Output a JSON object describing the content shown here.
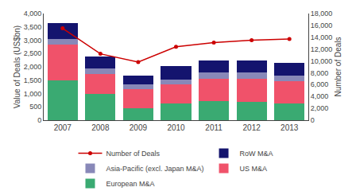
{
  "chart_data": {
    "type": "bar",
    "stacked": true,
    "categories": [
      "2007",
      "2008",
      "2009",
      "2010",
      "2011",
      "2012",
      "2013"
    ],
    "series": [
      {
        "name": "European M&A",
        "color": "#3aaa72",
        "values": [
          1500,
          1000,
          450,
          620,
          730,
          700,
          620
        ]
      },
      {
        "name": "US M&A",
        "color": "#f0526a",
        "values": [
          1340,
          740,
          700,
          720,
          820,
          860,
          855
        ]
      },
      {
        "name": "Asia-Pacific (excl. Japan M&A)",
        "color": "#8888b8",
        "values": [
          190,
          190,
          200,
          190,
          240,
          240,
          195
        ]
      },
      {
        "name": "RoW M&A",
        "color": "#14146e",
        "values": [
          600,
          450,
          330,
          490,
          440,
          440,
          490
        ]
      },
      {
        "name": "Number of Deals",
        "type": "line",
        "axis": "y2",
        "color": "#cc0000",
        "marker": "circle",
        "values": [
          15500,
          11200,
          9800,
          12400,
          13100,
          13500,
          13700
        ]
      }
    ],
    "ylabel": "Value of Deals (US$bn)",
    "y2label": "Number of Deals",
    "ylim": [
      0,
      4000
    ],
    "yticks": [
      0,
      500,
      {
        "value": 1000,
        "label": "1,000"
      },
      {
        "value": 1500,
        "label": "1,500"
      },
      {
        "value": 2000,
        "label": "2,000"
      },
      {
        "value": 2500,
        "label": "2,500"
      },
      {
        "value": 3000,
        "label": "3,000"
      },
      {
        "value": 3500,
        "label": "3,500"
      },
      {
        "value": 4000,
        "label": "4,000"
      }
    ],
    "y2lim": [
      0,
      18000
    ],
    "y2ticks": [
      0,
      {
        "value": 2000,
        "label": "2,000"
      },
      {
        "value": 4000,
        "label": "4,000"
      },
      {
        "value": 6000,
        "label": "6,000"
      },
      {
        "value": 8000,
        "label": "8,000"
      },
      {
        "value": 10000,
        "label": "10,000"
      },
      {
        "value": 12000,
        "label": "12,000"
      },
      {
        "value": 14000,
        "label": "14,000"
      },
      {
        "value": 16000,
        "label": "16,000"
      },
      {
        "value": 18000,
        "label": "18,000"
      }
    ],
    "grid": false,
    "legend": "bottom"
  }
}
